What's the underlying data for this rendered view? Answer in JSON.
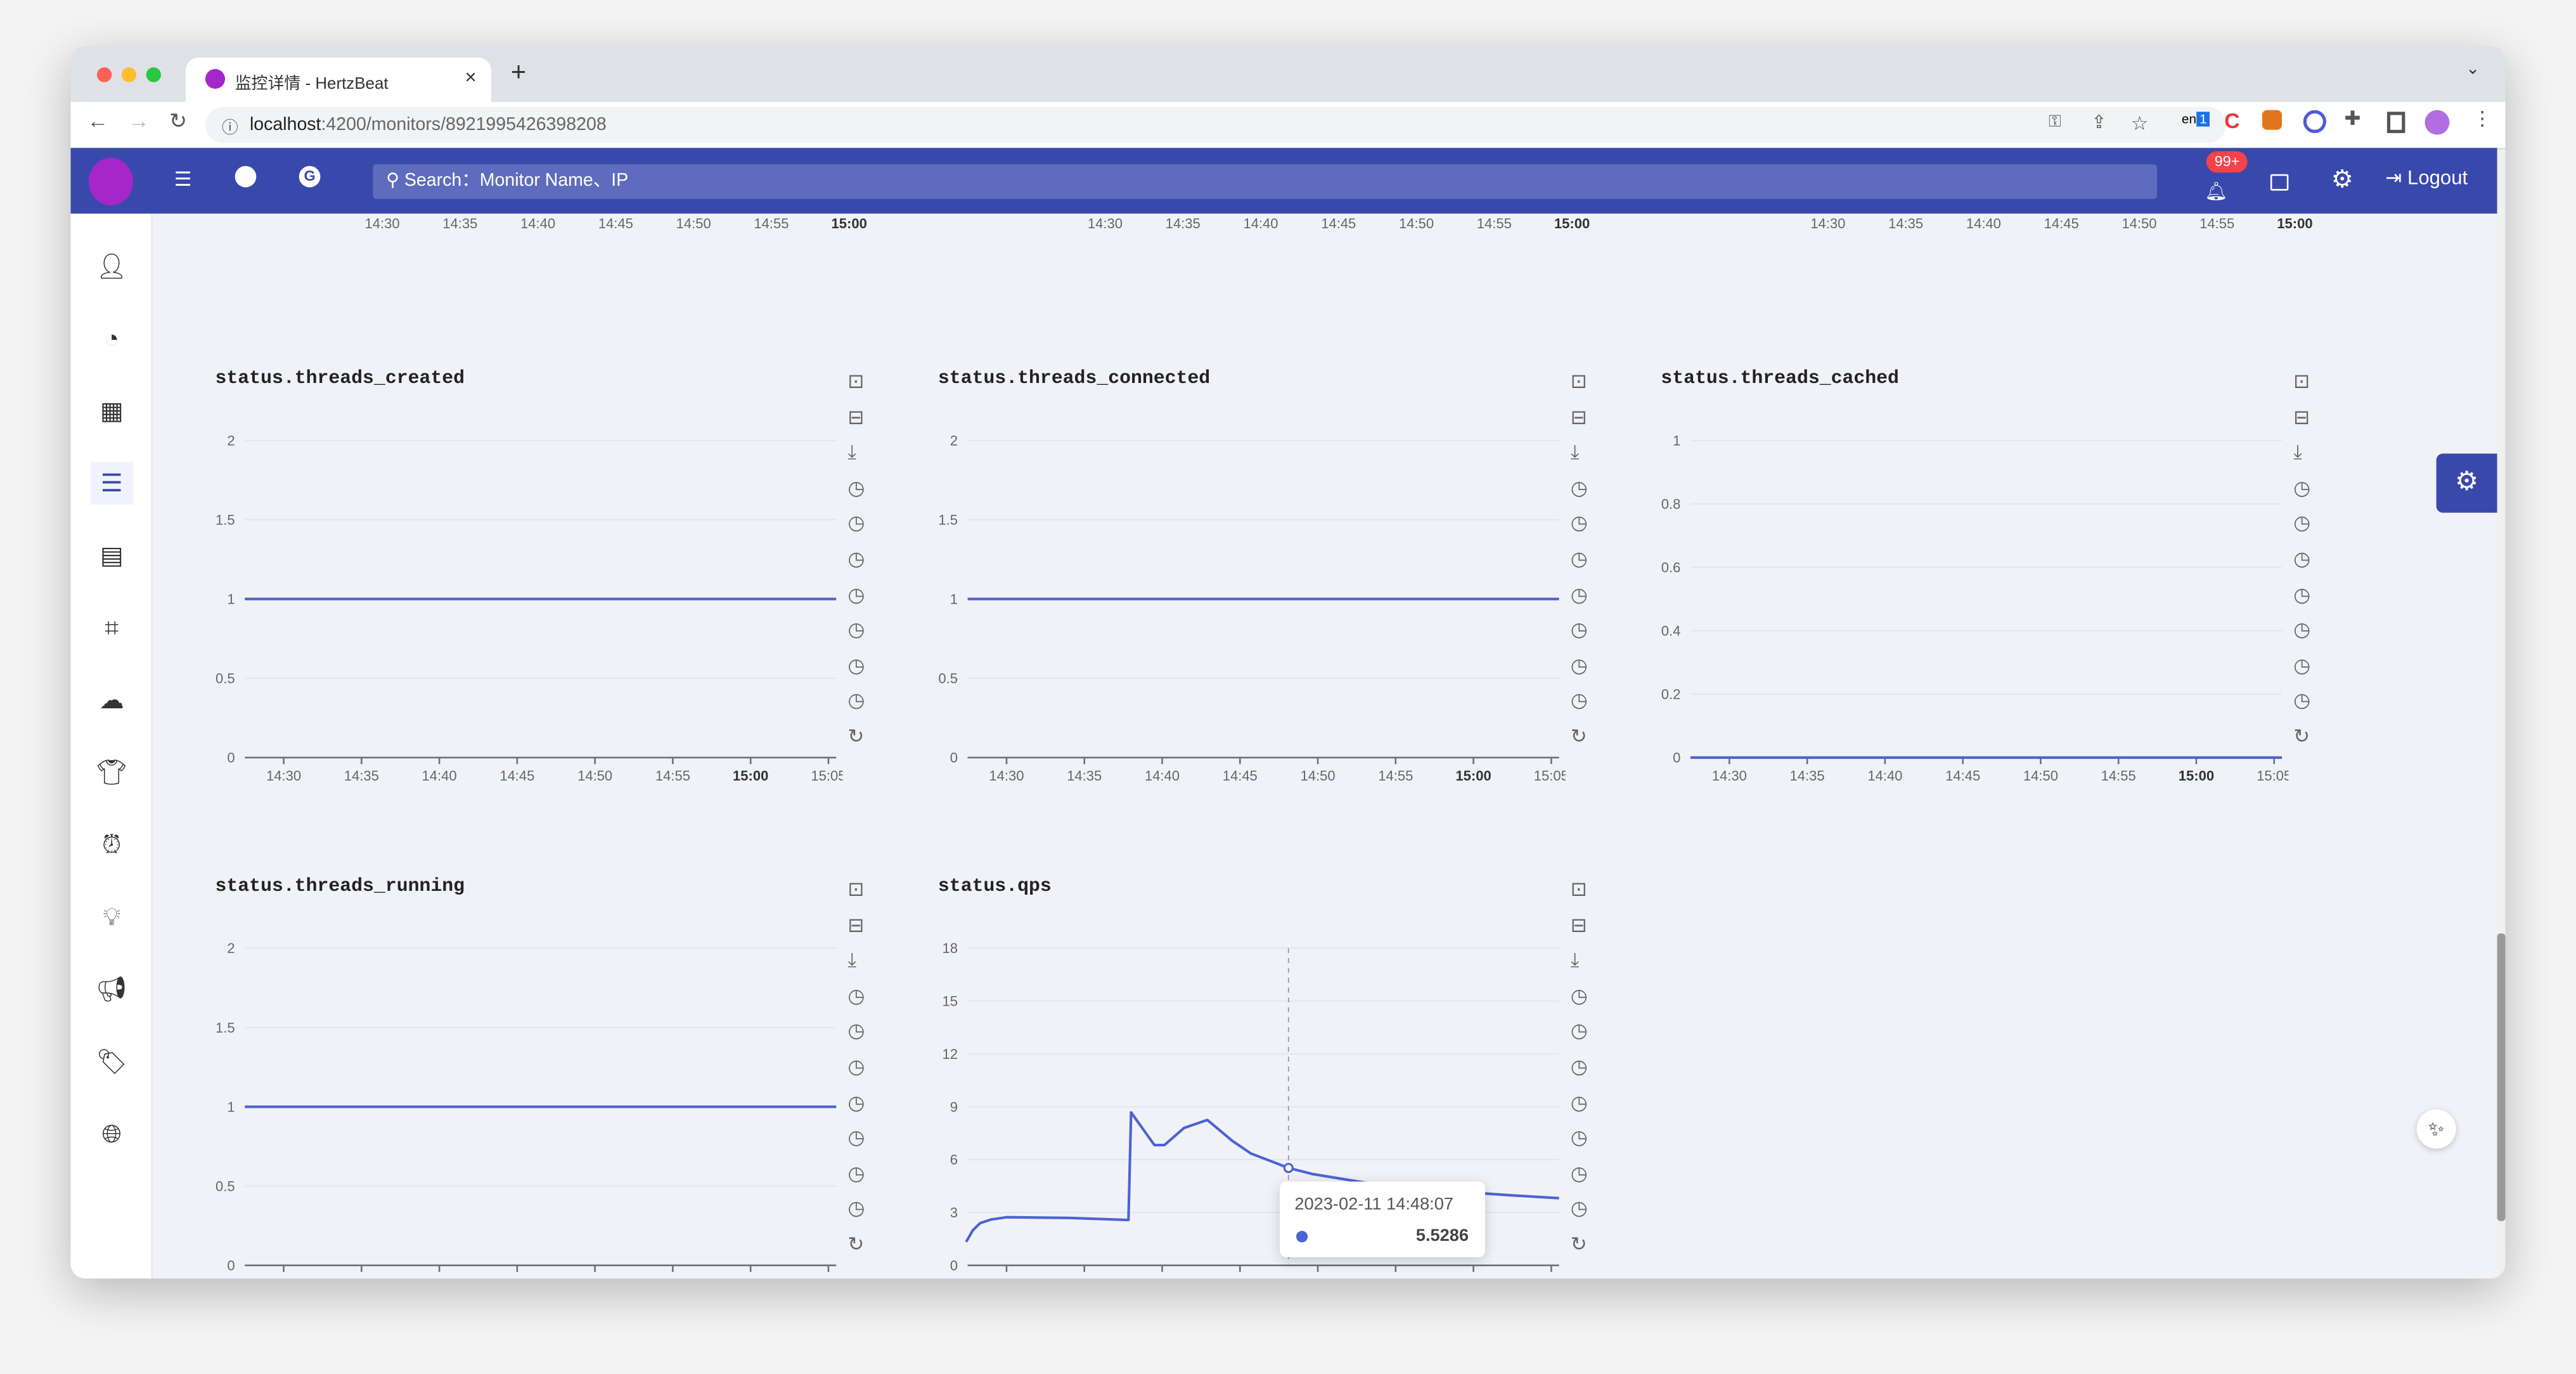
{
  "browser": {
    "tab_title": "监控详情 - HertzBeat",
    "url_host": "localhost",
    "url_rest": ":4200/monitors/8921995426398208",
    "translate_badge": "1"
  },
  "header": {
    "search_placeholder": "Search：Monitor Name、IP",
    "notification_count": "99+",
    "logout_label": "Logout",
    "color": "#3949ab"
  },
  "sidebar": {
    "items": [
      "user-avatar",
      "dashboard",
      "apps",
      "monitors",
      "layout",
      "scan",
      "cloud",
      "shirt",
      "alarm",
      "bulb",
      "megaphone",
      "tag",
      "globe"
    ],
    "active": "monitors"
  },
  "toolbox": [
    "zoom-in",
    "zoom-reset",
    "download",
    "clock",
    "clock",
    "clock",
    "clock",
    "clock",
    "clock",
    "clock",
    "refresh"
  ],
  "tooltip": {
    "time": "2023-02-11 14:48:07",
    "value": "5.5286"
  },
  "x_ticks": [
    "14:30",
    "14:35",
    "14:40",
    "14:45",
    "14:50",
    "14:55",
    "15:00",
    "15:05"
  ],
  "chart_data": [
    {
      "type": "line",
      "title": "status.threads_created",
      "ylim": [
        0,
        2
      ],
      "yticks": [
        "0",
        "0.5",
        "1",
        "1.5",
        "2"
      ],
      "x": [
        "14:27:30",
        "15:05:30"
      ],
      "values": [
        1,
        1
      ]
    },
    {
      "type": "line",
      "title": "status.threads_connected",
      "ylim": [
        0,
        2
      ],
      "yticks": [
        "0",
        "0.5",
        "1",
        "1.5",
        "2"
      ],
      "x": [
        "14:27:30",
        "15:05:30"
      ],
      "values": [
        1,
        1
      ]
    },
    {
      "type": "line",
      "title": "status.threads_cached",
      "ylim": [
        0,
        1
      ],
      "yticks": [
        "0",
        "0.2",
        "0.4",
        "0.6",
        "0.8",
        "1"
      ],
      "x": [
        "14:27:30",
        "15:05:30"
      ],
      "values": [
        0,
        0
      ]
    },
    {
      "type": "line",
      "title": "status.threads_running",
      "ylim": [
        0,
        2
      ],
      "yticks": [
        "0",
        "0.5",
        "1",
        "1.5",
        "2"
      ],
      "x": [
        "14:27:30",
        "15:05:30"
      ],
      "values": [
        1,
        1
      ]
    },
    {
      "type": "line",
      "title": "status.qps",
      "ylim": [
        0,
        18
      ],
      "yticks": [
        "0",
        "3",
        "6",
        "9",
        "12",
        "15",
        "18"
      ],
      "x": [
        "14:27:24",
        "14:27:50",
        "14:28:18",
        "14:29:00",
        "14:30:00",
        "14:34:00",
        "14:37:50",
        "14:38:00",
        "14:39:30",
        "14:40:09",
        "14:41:24",
        "14:42:54",
        "14:44:30",
        "14:45:42",
        "14:48:07",
        "14:49:42",
        "14:53:00",
        "14:57:00",
        "15:00:00",
        "15:02:30",
        "15:05:30"
      ],
      "values": [
        1.33,
        2.0,
        2.4,
        2.6,
        2.73,
        2.7,
        2.57,
        8.68,
        6.83,
        6.83,
        7.8,
        8.25,
        7.07,
        6.35,
        5.5286,
        5.18,
        4.7,
        4.35,
        4.12,
        3.97,
        3.81
      ]
    }
  ]
}
